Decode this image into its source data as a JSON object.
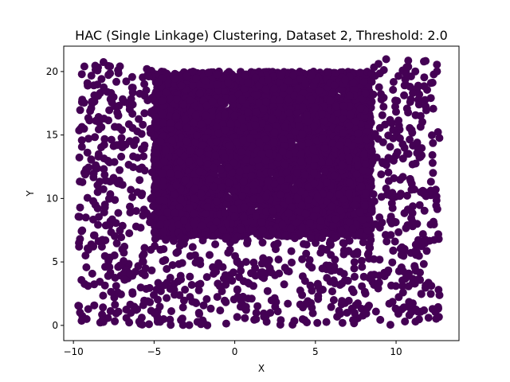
{
  "chart_data": {
    "type": "scatter",
    "title": "HAC (Single Linkage) Clustering, Dataset 2, Threshold: 2.0",
    "xlabel": "X",
    "ylabel": "Y",
    "xlim": [
      -10.6,
      13.9
    ],
    "ylim": [
      -1.2,
      22.0
    ],
    "xticks": [
      -10,
      -5,
      0,
      5,
      10
    ],
    "yticks": [
      0,
      5,
      10,
      15,
      20
    ],
    "grid": false,
    "legend": "none",
    "point_color": "#440154",
    "regions": [
      {
        "shape": "filled_rectangle",
        "x": [
          -5,
          8.5
        ],
        "y": [
          7,
          20
        ],
        "density": "dense"
      },
      {
        "shape": "left_strip",
        "x": [
          -9.7,
          -5
        ],
        "y": [
          0,
          21
        ],
        "density": "medium"
      },
      {
        "shape": "right_strip",
        "x": [
          8.5,
          12.7
        ],
        "y": [
          0,
          21
        ],
        "density": "medium"
      },
      {
        "shape": "bottom_strip",
        "x": [
          -5,
          8.5
        ],
        "y": [
          0,
          7
        ],
        "density": "medium"
      }
    ]
  }
}
